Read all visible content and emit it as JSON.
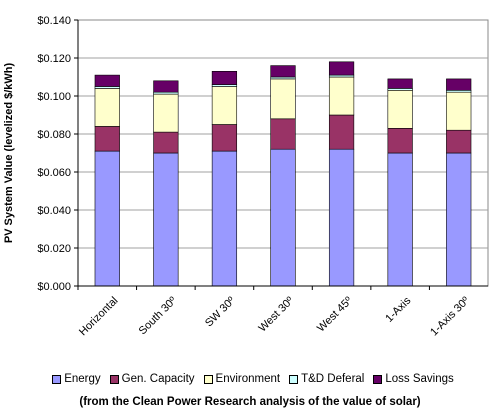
{
  "chart_data": {
    "type": "bar",
    "stacked": true,
    "categories": [
      "Horizontal",
      "South 30º",
      "SW 30º",
      "West 30º",
      "West 45º",
      "1-Axis",
      "1-Axis 30º"
    ],
    "series": [
      {
        "name": "Energy",
        "color": "#9999ff",
        "values": [
          0.071,
          0.07,
          0.071,
          0.072,
          0.072,
          0.07,
          0.07
        ]
      },
      {
        "name": "Gen. Capacity",
        "color": "#993366",
        "values": [
          0.013,
          0.011,
          0.014,
          0.016,
          0.018,
          0.013,
          0.012
        ]
      },
      {
        "name": "Environment",
        "color": "#ffffcc",
        "values": [
          0.02,
          0.02,
          0.02,
          0.021,
          0.02,
          0.02,
          0.02
        ]
      },
      {
        "name": "T&D Deferal",
        "color": "#ccffff",
        "values": [
          0.001,
          0.001,
          0.001,
          0.001,
          0.001,
          0.001,
          0.001
        ]
      },
      {
        "name": "Loss Savings",
        "color": "#660066",
        "values": [
          0.006,
          0.006,
          0.007,
          0.006,
          0.007,
          0.005,
          0.006
        ]
      }
    ],
    "ylabel": "PV System Value (levelized $/kWh)",
    "xlabel": "",
    "ylim": [
      0,
      0.14
    ],
    "yticks": [
      "$0.000",
      "$0.020",
      "$0.040",
      "$0.060",
      "$0.080",
      "$0.100",
      "$0.120",
      "$0.140"
    ],
    "grid": true,
    "legend_position": "bottom"
  },
  "caption": "(from the Clean Power Research analysis of the value of solar)"
}
